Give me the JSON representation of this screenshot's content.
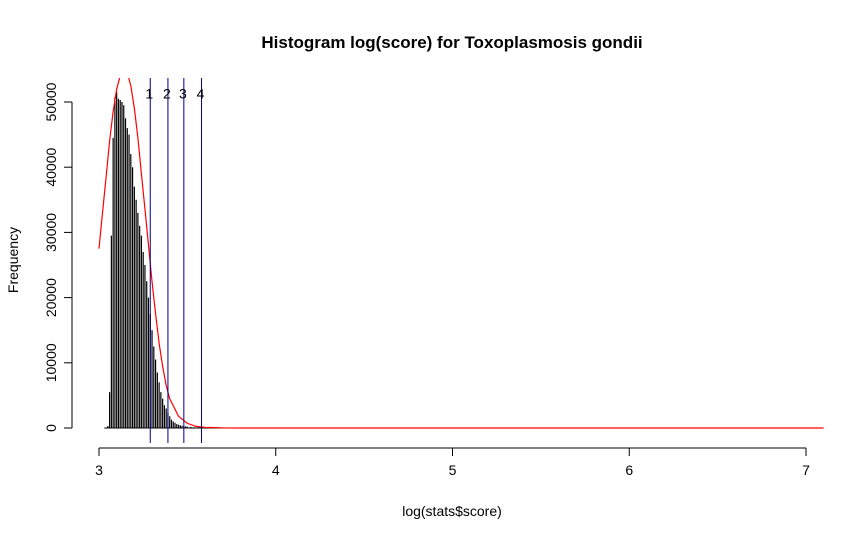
{
  "chart_data": {
    "type": "bar",
    "title": "Histogram log(score) for Toxoplasmosis gondii",
    "xlabel": "log(stats$score)",
    "ylabel": "Frequency",
    "xlim": [
      3.0,
      7.1
    ],
    "ylim": [
      0,
      53500
    ],
    "x_ticks": [
      "3",
      "4",
      "5",
      "6",
      "7"
    ],
    "x_tick_values": [
      3,
      4,
      5,
      6,
      7
    ],
    "y_ticks": [
      "0",
      "10000",
      "20000",
      "30000",
      "40000",
      "50000"
    ],
    "y_tick_values": [
      0,
      10000,
      20000,
      30000,
      40000,
      50000
    ],
    "bar_color": "#000000",
    "histogram": {
      "bins_x": [
        3.05,
        3.06,
        3.07,
        3.08,
        3.09,
        3.1,
        3.11,
        3.12,
        3.13,
        3.14,
        3.15,
        3.16,
        3.17,
        3.18,
        3.19,
        3.2,
        3.21,
        3.22,
        3.23,
        3.24,
        3.25,
        3.26,
        3.27,
        3.28,
        3.29,
        3.3,
        3.31,
        3.32,
        3.33,
        3.34,
        3.35,
        3.36,
        3.37,
        3.38,
        3.39,
        3.4,
        3.41,
        3.42,
        3.43,
        3.44,
        3.45,
        3.46,
        3.47,
        3.48,
        3.49,
        3.5,
        3.52,
        3.54,
        3.56,
        3.58,
        3.6,
        3.62,
        3.65,
        3.7,
        3.75,
        3.8
      ],
      "counts": [
        300,
        5500,
        29500,
        44500,
        50700,
        51500,
        50500,
        50300,
        50000,
        49500,
        47500,
        46000,
        45000,
        42000,
        40000,
        37000,
        35000,
        33000,
        31000,
        29500,
        27000,
        25000,
        22500,
        20000,
        17500,
        15000,
        12500,
        10500,
        8500,
        7000,
        5500,
        4500,
        3500,
        3000,
        2300,
        1800,
        1300,
        1000,
        800,
        600,
        500,
        420,
        350,
        300,
        250,
        200,
        160,
        120,
        100,
        80,
        60,
        50,
        40,
        30,
        20,
        10
      ]
    },
    "fitted_curve": {
      "name": "",
      "color": "#ff0000",
      "x": [
        3.0,
        3.02,
        3.04,
        3.06,
        3.08,
        3.1,
        3.12,
        3.14,
        3.16,
        3.18,
        3.2,
        3.22,
        3.24,
        3.26,
        3.28,
        3.3,
        3.32,
        3.34,
        3.36,
        3.38,
        3.4,
        3.45,
        3.5,
        3.55,
        3.6,
        3.7,
        3.8,
        3.9,
        4.0,
        5.0,
        6.0,
        7.1
      ],
      "y": [
        27500,
        33000,
        38500,
        44000,
        48500,
        52000,
        54000,
        55000,
        54500,
        52500,
        49000,
        44500,
        39000,
        33500,
        28000,
        22500,
        17500,
        13000,
        9500,
        6500,
        4500,
        1800,
        700,
        250,
        90,
        20,
        5,
        0,
        0,
        0,
        0,
        0
      ]
    },
    "vlines": [
      {
        "label": "1",
        "x": 3.29
      },
      {
        "label": "2",
        "x": 3.39
      },
      {
        "label": "3",
        "x": 3.48
      },
      {
        "label": "4",
        "x": 3.58
      }
    ],
    "vline_color": "#00008b",
    "vline_label_y": 51300,
    "grid": false,
    "legend": "none"
  }
}
